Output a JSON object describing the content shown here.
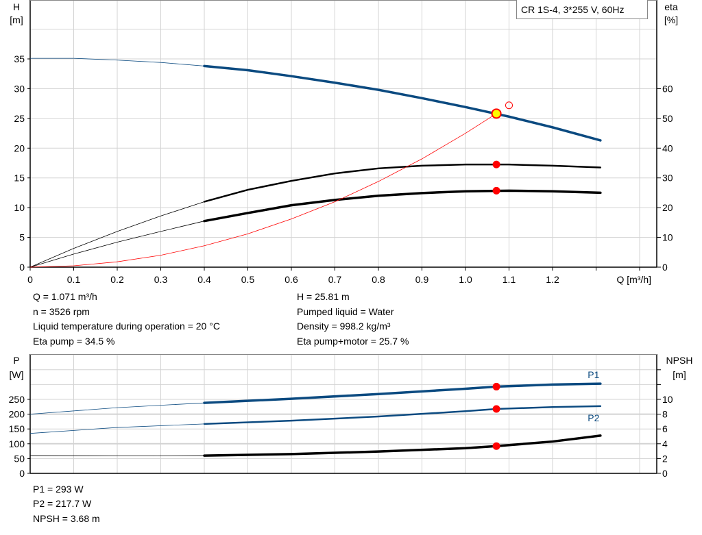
{
  "colors": {
    "head": "#0b4a80",
    "eta": "#000000",
    "system": "#ff0000",
    "duty_point": "#ffff00",
    "marker": "#ff0000",
    "power": "#0b4a80",
    "npsh": "#000000",
    "grid": "#d3d3d3"
  },
  "title_box": "CR 1S-4, 3*255 V, 60Hz",
  "chart_data": [
    {
      "type": "line",
      "xlabel": "Q [m³/h]",
      "ylabel_left": [
        "H",
        "[m]"
      ],
      "ylabel_right": [
        "eta",
        "[%]"
      ],
      "xlim": [
        0,
        1.45
      ],
      "ylim_left": [
        0,
        45
      ],
      "ylim_right": [
        0,
        90
      ],
      "x_ticks": [
        "0",
        "0.1",
        "0.2",
        "0.3",
        "0.4",
        "0.5",
        "0.6",
        "0.7",
        "0.8",
        "0.9",
        "1.0",
        "1.1",
        "1.2"
      ],
      "y_ticks_left": [
        "0",
        "5",
        "10",
        "15",
        "20",
        "25",
        "30",
        "35"
      ],
      "y_ticks_right": [
        "0",
        "10",
        "20",
        "30",
        "40",
        "50",
        "60"
      ],
      "grid": true,
      "series": [
        {
          "id": "H",
          "axis": "left",
          "thin_until": 0.4,
          "x": [
            0,
            0.1,
            0.2,
            0.3,
            0.4,
            0.5,
            0.6,
            0.7,
            0.8,
            0.9,
            1.0,
            1.1,
            1.2,
            1.31
          ],
          "y": [
            35.1,
            35.1,
            34.8,
            34.4,
            33.8,
            33.1,
            32.1,
            31.0,
            29.8,
            28.4,
            26.9,
            25.3,
            23.5,
            21.3
          ]
        },
        {
          "id": "eta_pump",
          "axis": "right",
          "thin_until": 0.4,
          "x": [
            0,
            0.1,
            0.2,
            0.3,
            0.4,
            0.5,
            0.6,
            0.7,
            0.8,
            0.9,
            1.0,
            1.1,
            1.2,
            1.31
          ],
          "y": [
            0,
            6.3,
            12,
            17.2,
            22,
            26,
            29,
            31.5,
            33.2,
            34.1,
            34.5,
            34.5,
            34.1,
            33.5
          ]
        },
        {
          "id": "eta_pump_motor",
          "axis": "right",
          "thin_until": 0.4,
          "x": [
            0,
            0.1,
            0.2,
            0.3,
            0.4,
            0.5,
            0.6,
            0.7,
            0.8,
            0.9,
            1.0,
            1.1,
            1.2,
            1.31
          ],
          "y": [
            0,
            4.4,
            8.4,
            12,
            15.5,
            18.2,
            20.8,
            22.6,
            24,
            24.9,
            25.5,
            25.7,
            25.5,
            25
          ]
        },
        {
          "id": "system_curve",
          "axis": "left",
          "x": [
            0,
            0.1,
            0.2,
            0.3,
            0.4,
            0.5,
            0.6,
            0.7,
            0.8,
            0.9,
            1.0,
            1.071
          ],
          "y": [
            0,
            0.23,
            0.9,
            2.0,
            3.6,
            5.6,
            8.1,
            11.0,
            14.4,
            18.2,
            22.5,
            25.81
          ]
        }
      ],
      "markers": [
        {
          "id": "duty_point",
          "axis": "left",
          "x": 1.071,
          "y": 25.81,
          "style": "yellow"
        },
        {
          "id": "requested_point",
          "axis": "left",
          "x": 1.1,
          "y": 27.2,
          "style": "open"
        },
        {
          "id": "eta_pump_point",
          "axis": "right",
          "x": 1.071,
          "y": 34.5,
          "style": "red"
        },
        {
          "id": "eta_pump_motor_point",
          "axis": "right",
          "x": 1.071,
          "y": 25.7,
          "style": "red"
        }
      ]
    },
    {
      "type": "line",
      "ylabel_left": [
        "P",
        "[W]"
      ],
      "ylabel_right": [
        "NPSH",
        "[m]"
      ],
      "xlim": [
        0,
        1.45
      ],
      "ylim_left": [
        0,
        400
      ],
      "ylim_right": [
        0,
        16
      ],
      "y_ticks_left": [
        "0",
        "50",
        "100",
        "150",
        "200",
        "250"
      ],
      "y_ticks_right": [
        "0",
        "2",
        "4",
        "6",
        "8",
        "10"
      ],
      "grid": true,
      "series": [
        {
          "id": "P1",
          "name": "P1",
          "axis": "left",
          "thin_until": 0.4,
          "x": [
            0,
            0.2,
            0.4,
            0.6,
            0.8,
            1.0,
            1.071,
            1.2,
            1.31
          ],
          "y": [
            200,
            222,
            238,
            252,
            268,
            286,
            293,
            300,
            303
          ]
        },
        {
          "id": "P2",
          "name": "P2",
          "axis": "left",
          "thin_until": 0.4,
          "x": [
            0,
            0.2,
            0.4,
            0.6,
            0.8,
            1.0,
            1.071,
            1.2,
            1.31
          ],
          "y": [
            135,
            155,
            167,
            178,
            192,
            210,
            217.7,
            224,
            227
          ]
        },
        {
          "id": "NPSH",
          "axis": "right",
          "thin_until": 0.4,
          "x": [
            0,
            0.2,
            0.4,
            0.6,
            0.8,
            1.0,
            1.071,
            1.2,
            1.31
          ],
          "y": [
            2.4,
            2.35,
            2.4,
            2.6,
            2.95,
            3.4,
            3.68,
            4.3,
            5.1
          ]
        }
      ],
      "markers": [
        {
          "id": "P1_point",
          "axis": "left",
          "x": 1.071,
          "y": 293,
          "style": "red"
        },
        {
          "id": "P2_point",
          "axis": "left",
          "x": 1.071,
          "y": 217.7,
          "style": "red"
        },
        {
          "id": "NPSH_point",
          "axis": "right",
          "x": 1.071,
          "y": 3.68,
          "style": "red"
        }
      ]
    }
  ],
  "info_top": {
    "left": [
      "Q = 1.071 m³/h",
      "n = 3526 rpm",
      "Liquid temperature during operation = 20 °C",
      "Eta pump = 34.5 %"
    ],
    "right": [
      "H = 25.81 m",
      "Pumped liquid = Water",
      "Density = 998.2 kg/m³",
      "Eta pump+motor = 25.7 %"
    ]
  },
  "info_bottom": [
    "P1 = 293 W",
    "P2 = 217.7 W",
    "NPSH = 3.68 m"
  ]
}
